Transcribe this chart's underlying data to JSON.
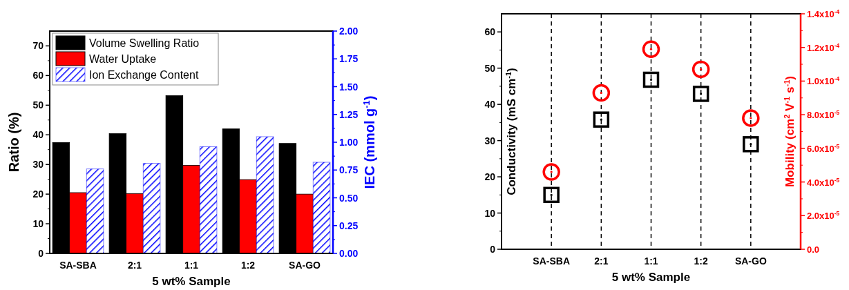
{
  "chart_data": [
    {
      "type": "bar",
      "xlabel": "5 wt% Sample",
      "ylabel": "Ratio (%)",
      "y2label": "IEC (mmol g$^{-1}$)",
      "categories": [
        "SA-SBA",
        "2:1",
        "1:1",
        "1:2",
        "SA-GO"
      ],
      "series": [
        {
          "name": "Volume Swelling Ratio",
          "color": "#000000",
          "values": [
            37.4,
            40.4,
            53.2,
            42.0,
            37.1
          ]
        },
        {
          "name": "Water Uptake",
          "color": "#ff0000",
          "values": [
            20.5,
            20.2,
            29.7,
            24.9,
            20.0
          ]
        },
        {
          "name": "Ion Exchange Content",
          "color": "#0000ff",
          "axis": "y2",
          "values": [
            0.76,
            0.81,
            0.96,
            1.05,
            0.82
          ]
        }
      ],
      "ylim": [
        0,
        75
      ],
      "yticks": [
        0,
        10,
        20,
        30,
        40,
        50,
        60,
        70
      ],
      "y2lim": [
        0,
        2
      ],
      "y2ticks": [
        {
          "value": 0,
          "label": "0.00"
        },
        {
          "value": 0.25,
          "label": "0.25"
        },
        {
          "value": 0.5,
          "label": "0.50"
        },
        {
          "value": 0.75,
          "label": "0.75"
        },
        {
          "value": 1,
          "label": "1.00"
        },
        {
          "value": 1.25,
          "label": "1.25"
        },
        {
          "value": 1.5,
          "label": "1.50"
        },
        {
          "value": 1.75,
          "label": "1.75"
        },
        {
          "value": 2,
          "label": "2.00"
        }
      ],
      "legend": "top left"
    },
    {
      "type": "scatter",
      "xlabel": "5 wt% Sample",
      "ylabel": "Conductivity (mS cm$^{-1}$)",
      "y2label": "Mobility (cm$^{2}$ V$^{-1}$ s$^{-1}$)",
      "categories": [
        "SA-SBA",
        "2:1",
        "1:1",
        "1:2",
        "SA-GO"
      ],
      "series": [
        {
          "color": "#000000",
          "marker": "square",
          "values": [
            15.0,
            35.8,
            46.8,
            42.9,
            29.0
          ]
        },
        {
          "color": "#ff0000",
          "marker": "circle",
          "axis": "y2",
          "values": [
            4.6e-05,
            9.3e-05,
            0.000119,
            0.000107,
            7.8e-05
          ]
        }
      ],
      "ylim": [
        0,
        65
      ],
      "yticks": [
        0,
        10,
        20,
        30,
        40,
        50,
        60
      ],
      "y2lim": [
        0,
        0.00014
      ],
      "y2ticks": [
        {
          "value": 0,
          "label": "0.0"
        },
        {
          "value": 2e-05,
          "label": "2.0x10$^{-5}$"
        },
        {
          "value": 4e-05,
          "label": "4.0x10$^{-5}$"
        },
        {
          "value": 6e-05,
          "label": "6.0x10$^{-5}$"
        },
        {
          "value": 8e-05,
          "label": "8.0x10$^{-5}$"
        },
        {
          "value": 0.0001,
          "label": "1.0x10$^{-4}$"
        },
        {
          "value": 0.00012,
          "label": "1.2x10$^{-4}$"
        },
        {
          "value": 0.00014,
          "label": "1.4x10$^{-4}$"
        }
      ],
      "grid": "x",
      "line_style": "dashed",
      "legend": false
    }
  ]
}
